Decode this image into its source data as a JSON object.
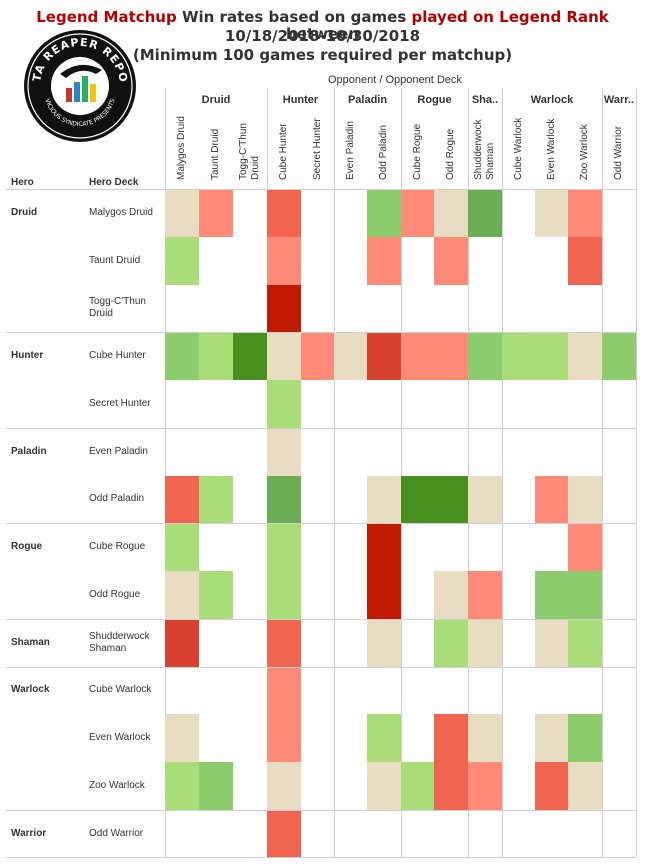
{
  "title": {
    "line1_part1": "Legend Matchup",
    "line1_part2": " Win rates based on games ",
    "line1_part3": "played on Legend Rank",
    "line1_part4": "  between",
    "line2": "10/18/2018-10/30/2018",
    "line3": "(Minimum 100 games required per matchup)"
  },
  "logo": {
    "main_text": "DATA REAPER REPORT",
    "sub_text": "VICIOUS SYNDICATE PRESENTS"
  },
  "header": {
    "opponent_label": "Opponent  /  Opponent Deck",
    "hero_label": "Hero",
    "hero_deck_label": "Hero Deck"
  },
  "colors": {
    "1": "#e8dcc2",
    "2": "#ff8a78",
    "3": "#f06450",
    "4": "#d84030",
    "5": "#c01a00",
    "-1": "#a8dd78",
    "-2": "#8ccc6c",
    "-3": "#6aad55",
    "-4": "#48901f"
  },
  "chart_data": {
    "type": "heatmap",
    "note_scale": "matchup cell shading; positive levels red, negative levels green, 1 = neutral beige, 0 = no data",
    "opponent_classes": [
      {
        "name": "Druid",
        "decks": [
          "Malygos Druid",
          "Taunt Druid",
          "Togg-C'Thun Druid"
        ]
      },
      {
        "name": "Hunter",
        "decks": [
          "Cube Hunter",
          "Secret Hunter"
        ]
      },
      {
        "name": "Paladin",
        "decks": [
          "Even Paladin",
          "Odd Paladin"
        ]
      },
      {
        "name": "Rogue",
        "decks": [
          "Cube Rogue",
          "Odd Rogue"
        ]
      },
      {
        "name": "Sha..",
        "decks": [
          "Shudderwock Shaman"
        ]
      },
      {
        "name": "Warlock",
        "decks": [
          "Cube Warlock",
          "Even Warlock",
          "Zoo Warlock"
        ]
      },
      {
        "name": "Warr..",
        "decks": [
          "Odd Warrior"
        ]
      }
    ],
    "hero_classes": [
      {
        "name": "Druid",
        "decks": [
          "Malygos Druid",
          "Taunt Druid",
          "Togg-C'Thun Druid"
        ]
      },
      {
        "name": "Hunter",
        "decks": [
          "Cube Hunter",
          "Secret Hunter"
        ]
      },
      {
        "name": "Paladin",
        "decks": [
          "Even Paladin",
          "Odd Paladin"
        ]
      },
      {
        "name": "Rogue",
        "decks": [
          "Cube Rogue",
          "Odd Rogue"
        ]
      },
      {
        "name": "Shaman",
        "decks": [
          "Shudderwock Shaman"
        ]
      },
      {
        "name": "Warlock",
        "decks": [
          "Cube Warlock",
          "Even Warlock",
          "Zoo Warlock"
        ]
      },
      {
        "name": "Warrior",
        "decks": [
          "Odd Warrior"
        ]
      }
    ],
    "levels": [
      [
        1,
        2,
        0,
        3,
        0,
        0,
        -2,
        2,
        1,
        -3,
        0,
        1,
        2,
        0
      ],
      [
        -1,
        0,
        0,
        2,
        0,
        0,
        2,
        0,
        2,
        0,
        0,
        0,
        3,
        0
      ],
      [
        0,
        0,
        0,
        5,
        0,
        0,
        0,
        0,
        0,
        0,
        0,
        0,
        0,
        0
      ],
      [
        -2,
        -1,
        -4,
        1,
        2,
        1,
        4,
        2,
        2,
        -2,
        -1,
        -1,
        1,
        -2
      ],
      [
        0,
        0,
        0,
        -1,
        0,
        0,
        0,
        0,
        0,
        0,
        0,
        0,
        0,
        0
      ],
      [
        0,
        0,
        0,
        1,
        0,
        0,
        0,
        0,
        0,
        0,
        0,
        0,
        0,
        0
      ],
      [
        3,
        -1,
        0,
        -3,
        0,
        0,
        1,
        -4,
        -4,
        1,
        0,
        2,
        1,
        0
      ],
      [
        -1,
        0,
        0,
        -1,
        0,
        0,
        5,
        0,
        0,
        0,
        0,
        0,
        2,
        0
      ],
      [
        1,
        -1,
        0,
        -1,
        0,
        0,
        5,
        0,
        1,
        2,
        0,
        -2,
        -2,
        0
      ],
      [
        4,
        0,
        0,
        3,
        0,
        0,
        1,
        0,
        -1,
        1,
        0,
        1,
        -1,
        0
      ],
      [
        0,
        0,
        0,
        2,
        0,
        0,
        0,
        0,
        0,
        0,
        0,
        0,
        0,
        0
      ],
      [
        1,
        0,
        0,
        2,
        0,
        0,
        -1,
        0,
        3,
        1,
        0,
        1,
        -2,
        0
      ],
      [
        -1,
        -2,
        0,
        1,
        0,
        0,
        1,
        -1,
        3,
        2,
        0,
        3,
        1,
        0
      ],
      [
        0,
        0,
        0,
        3,
        0,
        0,
        0,
        0,
        0,
        0,
        0,
        0,
        0,
        0
      ]
    ]
  }
}
